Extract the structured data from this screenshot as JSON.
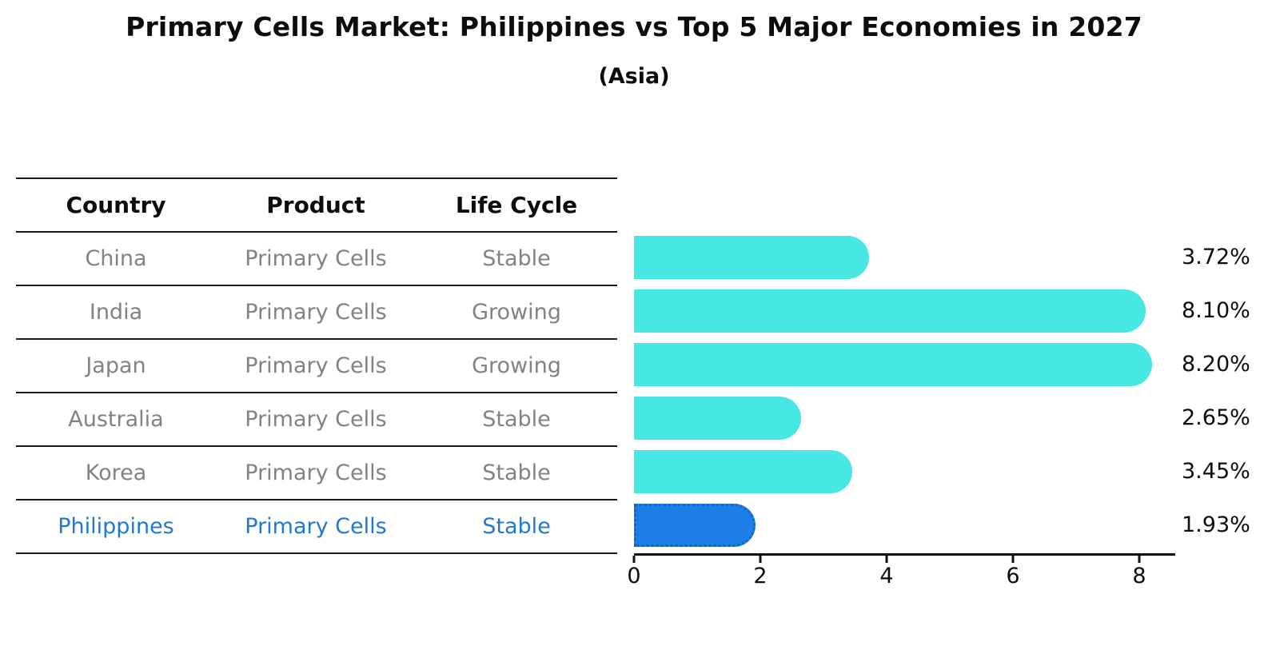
{
  "title": "Primary Cells Market: Philippines vs Top 5 Major Economies in 2027",
  "subtitle": "(Asia)",
  "table": {
    "headers": [
      "Country",
      "Product",
      "Life Cycle"
    ],
    "rows": [
      {
        "country": "China",
        "product": "Primary Cells",
        "life_cycle": "Stable",
        "highlighted": false
      },
      {
        "country": "India",
        "product": "Primary Cells",
        "life_cycle": "Growing",
        "highlighted": false
      },
      {
        "country": "Japan",
        "product": "Primary Cells",
        "life_cycle": "Growing",
        "highlighted": false
      },
      {
        "country": "Australia",
        "product": "Primary Cells",
        "life_cycle": "Stable",
        "highlighted": false
      },
      {
        "country": "Korea",
        "product": "Primary Cells",
        "life_cycle": "Stable",
        "highlighted": false
      },
      {
        "country": "Philippines",
        "product": "Primary Cells",
        "life_cycle": "Stable",
        "highlighted": true
      }
    ]
  },
  "chart_data": {
    "type": "bar",
    "orientation": "horizontal",
    "categories": [
      "China",
      "India",
      "Japan",
      "Australia",
      "Korea",
      "Philippines"
    ],
    "values": [
      3.72,
      8.1,
      8.2,
      2.65,
      3.45,
      1.93
    ],
    "value_labels": [
      "3.72%",
      "8.10%",
      "8.20%",
      "2.65%",
      "3.45%",
      "1.93%"
    ],
    "xtick_values": [
      0,
      2,
      4,
      6,
      8
    ],
    "xtick_labels": [
      "0",
      "2",
      "4",
      "6",
      "8"
    ],
    "xlim": [
      0,
      8.6
    ],
    "grid": false,
    "legend": false,
    "bar_color": "#47E8E4",
    "highlight_index": 5,
    "highlight_bar_color": "#1D7EE8",
    "highlight_border_color": "#1565C0"
  },
  "colors": {
    "background": "#FFFFFF",
    "text_primary": "#0D0D0D",
    "text_muted": "#828282",
    "highlight_text": "#1F78D1",
    "axis": "#111111"
  }
}
